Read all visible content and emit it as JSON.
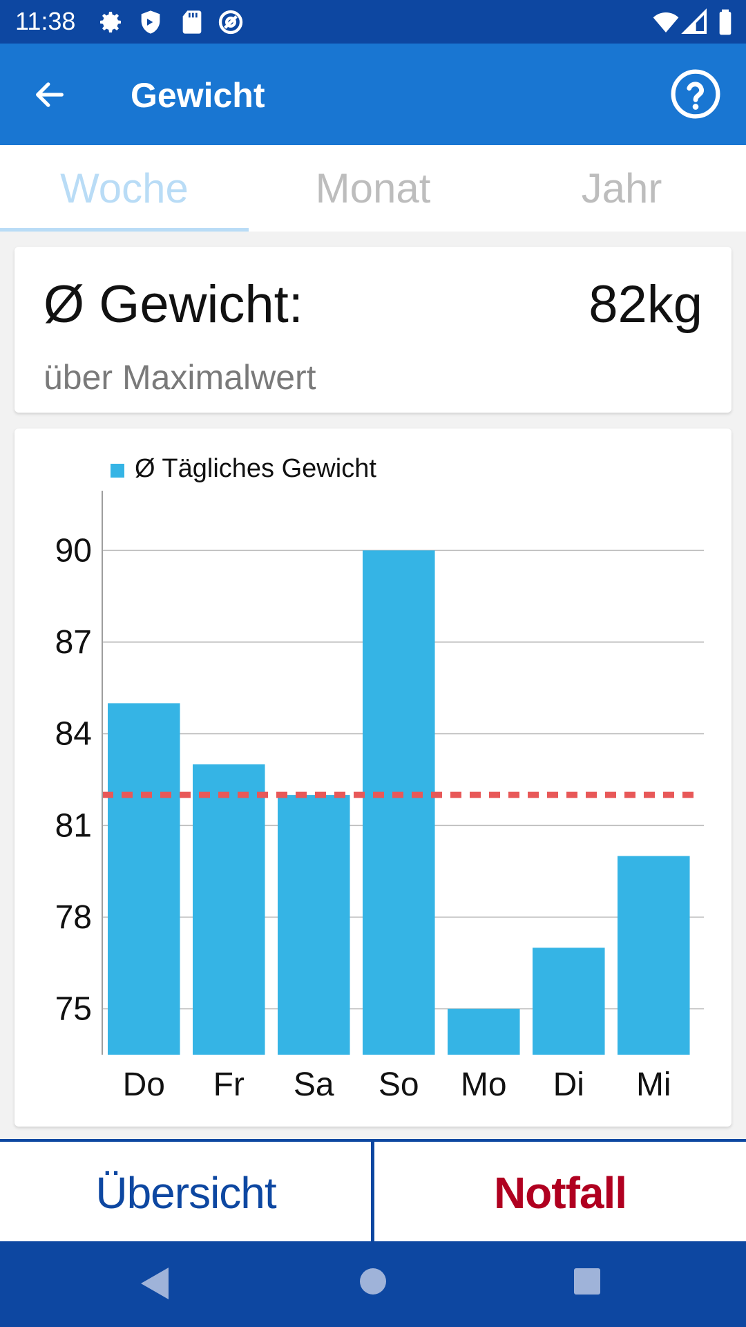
{
  "status_bar": {
    "time": "11:38",
    "icons": [
      "gear-icon",
      "shield-icon",
      "sd-card-icon",
      "at-sign-icon",
      "wifi-icon",
      "signal-icon",
      "battery-icon"
    ]
  },
  "app_bar": {
    "title": "Gewicht",
    "back_icon": "arrow-left-icon",
    "help_icon": "help-circle-icon"
  },
  "tabs": [
    {
      "label": "Woche",
      "active": true
    },
    {
      "label": "Monat",
      "active": false
    },
    {
      "label": "Jahr",
      "active": false
    }
  ],
  "summary": {
    "label": "Ø Gewicht:",
    "value": "82kg",
    "sublabel": "über Maximalwert"
  },
  "chart_data": {
    "type": "bar",
    "legend": "Ø Tägliches Gewicht",
    "categories": [
      "Do",
      "Fr",
      "Sa",
      "So",
      "Mo",
      "Di",
      "Mi"
    ],
    "values": [
      85,
      83,
      82,
      90,
      75,
      77,
      80
    ],
    "yticks": [
      75,
      78,
      81,
      84,
      87,
      90
    ],
    "ylim": [
      73.5,
      91.5
    ],
    "average_line": 82,
    "grid": true,
    "colors": {
      "bar": "#35b4e5",
      "average_line": "#e85858",
      "grid": "#bdbdbd"
    }
  },
  "bottom_nav": {
    "left_label": "Übersicht",
    "right_label": "Notfall",
    "right_color": "#b00020",
    "left_color": "#0d47a1"
  },
  "system_nav": {
    "icons": [
      "back-triangle-icon",
      "home-circle-icon",
      "recents-square-icon"
    ]
  }
}
